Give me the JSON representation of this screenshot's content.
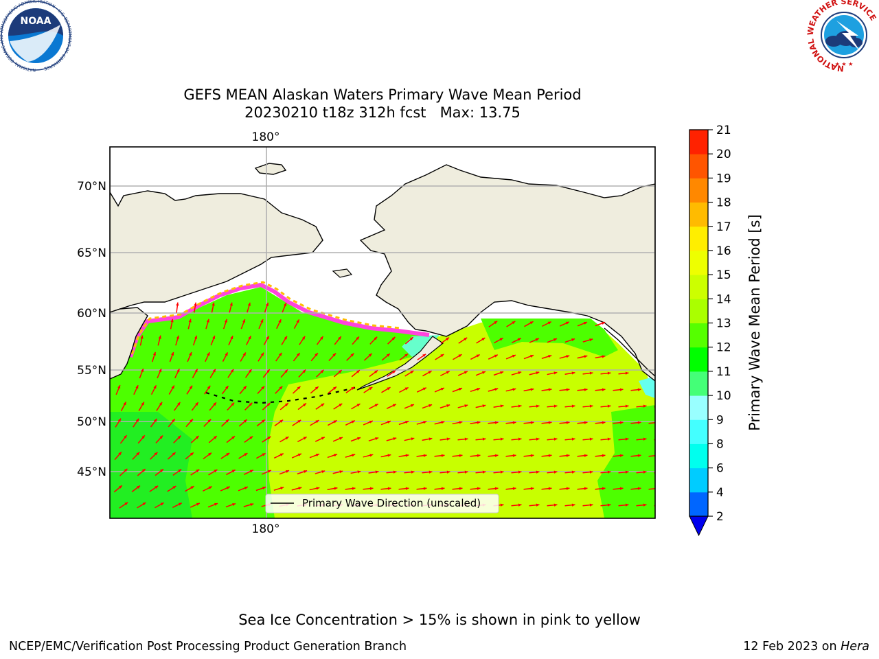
{
  "title": {
    "line1": "GEFS MEAN Alaskan Waters Primary Wave Mean Period",
    "line2": "20230210 t18z 312h fcst   Max: 13.75"
  },
  "logos": {
    "noaa": {
      "text": "NOAA",
      "ring_text": "NATIONAL OCEANIC AND ATMOSPHERIC ADMINISTRATION · U.S. DEPARTMENT OF COMMERCE ·",
      "icon": "noaa-logo-icon"
    },
    "nws": {
      "ring_text": "NATIONAL WEATHER SERVICE",
      "icon": "nws-logo-icon"
    }
  },
  "map": {
    "lat_labels": [
      "70°N",
      "65°N",
      "60°N",
      "55°N",
      "50°N",
      "45°N"
    ],
    "lon_label_top": "180°",
    "lon_label_bottom": "180°",
    "legend_label": "Primary Wave Direction (unscaled)",
    "colors": {
      "land": "#efedde",
      "sea_green": "#4dff00",
      "sea_lime": "#c8ff00",
      "ice_pink": "#ff44dd",
      "arrow": "#ff0000",
      "gridline": "#b0b0b0"
    }
  },
  "colorbar": {
    "label": "Primary Wave Mean Period [s]",
    "ticks": [
      "2",
      "4",
      "6",
      "8",
      "9",
      "10",
      "11",
      "12",
      "13",
      "14",
      "15",
      "16",
      "17",
      "18",
      "19",
      "20",
      "21"
    ],
    "colors": [
      "#0066ff",
      "#00ccff",
      "#00ffee",
      "#44ffff",
      "#99ffff",
      "#44ff77",
      "#00ff00",
      "#55ff00",
      "#aaff00",
      "#ccff00",
      "#eeff00",
      "#ffee00",
      "#ffbb00",
      "#ff8800",
      "#ff5500",
      "#ff2200",
      "#ff0000"
    ],
    "under_color": "#0000ee"
  },
  "caption": "Sea Ice Concentration > 15% is shown in pink to yellow",
  "footer": {
    "left": "NCEP/EMC/Verification Post Processing Product Generation Branch",
    "right_date": "12 Feb 2023 on ",
    "right_host": "Hera"
  }
}
